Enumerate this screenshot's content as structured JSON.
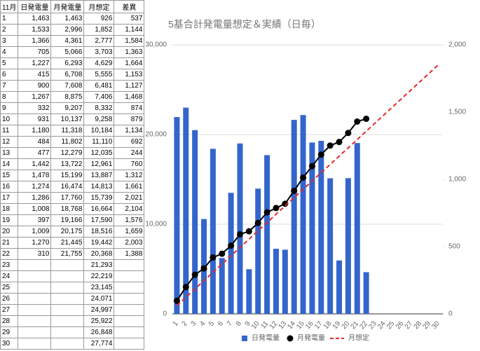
{
  "table": {
    "header": [
      "11月",
      "日発電量",
      "月発電量",
      "月想定",
      "差異"
    ],
    "rows": [
      [
        "1",
        "1,463",
        "1,463",
        "926",
        "537"
      ],
      [
        "2",
        "1,533",
        "2,996",
        "1,852",
        "1,144"
      ],
      [
        "3",
        "1,366",
        "4,361",
        "2,777",
        "1,584"
      ],
      [
        "4",
        "705",
        "5,066",
        "3,703",
        "1,363"
      ],
      [
        "5",
        "1,227",
        "6,293",
        "4,629",
        "1,664"
      ],
      [
        "6",
        "415",
        "6,708",
        "5,555",
        "1,153"
      ],
      [
        "7",
        "900",
        "7,608",
        "6,481",
        "1,127"
      ],
      [
        "8",
        "1,267",
        "8,875",
        "7,406",
        "1,468"
      ],
      [
        "9",
        "332",
        "9,207",
        "8,332",
        "874"
      ],
      [
        "10",
        "931",
        "10,137",
        "9,258",
        "879"
      ],
      [
        "11",
        "1,180",
        "11,318",
        "10,184",
        "1,134"
      ],
      [
        "12",
        "484",
        "11,802",
        "11,110",
        "692"
      ],
      [
        "13",
        "477",
        "12,279",
        "12,035",
        "244"
      ],
      [
        "14",
        "1,442",
        "13,722",
        "12,961",
        "760"
      ],
      [
        "15",
        "1,478",
        "15,199",
        "13,887",
        "1,312"
      ],
      [
        "16",
        "1,274",
        "16,474",
        "14,813",
        "1,661"
      ],
      [
        "17",
        "1,286",
        "17,760",
        "15,739",
        "2,021"
      ],
      [
        "18",
        "1,008",
        "18,768",
        "16,664",
        "2,104"
      ],
      [
        "19",
        "397",
        "19,166",
        "17,590",
        "1,576"
      ],
      [
        "20",
        "1,009",
        "20,175",
        "18,516",
        "1,659"
      ],
      [
        "21",
        "1,270",
        "21,445",
        "19,442",
        "2,003"
      ],
      [
        "22",
        "310",
        "21,755",
        "20,368",
        "1,388"
      ],
      [
        "23",
        null,
        null,
        "21,293",
        null
      ],
      [
        "24",
        null,
        null,
        "22,219",
        null
      ],
      [
        "25",
        null,
        null,
        "23,145",
        null
      ],
      [
        "26",
        null,
        null,
        "24,071",
        null
      ],
      [
        "27",
        null,
        null,
        "24,997",
        null
      ],
      [
        "28",
        null,
        null,
        "25,922",
        null
      ],
      [
        "29",
        null,
        null,
        "26,848",
        null
      ],
      [
        "30",
        null,
        null,
        "27,774",
        null
      ]
    ]
  },
  "chart_data": {
    "type": "bar",
    "title": "5基合計発電量想定＆実績（日毎）",
    "categories": [
      1,
      2,
      3,
      4,
      5,
      6,
      7,
      8,
      9,
      10,
      11,
      12,
      13,
      14,
      15,
      16,
      17,
      18,
      19,
      20,
      21,
      22,
      23,
      24,
      25,
      26,
      27,
      28,
      29,
      30
    ],
    "series": [
      {
        "name": "日発電量",
        "type": "bar",
        "axis": "y2",
        "color": "#3366cc",
        "values": [
          1463,
          1533,
          1366,
          705,
          1227,
          415,
          900,
          1267,
          332,
          931,
          1180,
          484,
          477,
          1442,
          1478,
          1274,
          1286,
          1008,
          397,
          1009,
          1270,
          310,
          null,
          null,
          null,
          null,
          null,
          null,
          null,
          null
        ]
      },
      {
        "name": "月発電量",
        "type": "line",
        "color": "#000000",
        "markers": true,
        "values": [
          1463,
          2996,
          4361,
          5066,
          6293,
          6708,
          7608,
          8875,
          9207,
          10137,
          11318,
          11802,
          12279,
          13722,
          15199,
          16474,
          17760,
          18768,
          19166,
          20175,
          21445,
          21755,
          null,
          null,
          null,
          null,
          null,
          null,
          null,
          null
        ]
      },
      {
        "name": "月想定",
        "type": "line",
        "color": "#e8262a",
        "dashed": true,
        "values": [
          926,
          1852,
          2777,
          3703,
          4629,
          5555,
          6481,
          7406,
          8332,
          9258,
          10184,
          11110,
          12035,
          12961,
          13887,
          14813,
          15739,
          16664,
          17590,
          18516,
          19442,
          20368,
          21293,
          22219,
          23145,
          24071,
          24997,
          25922,
          26848,
          27774
        ]
      }
    ],
    "ylim": [
      0,
      30000
    ],
    "yticks": [
      0,
      {
        "value": 10000,
        "label": "10,000"
      },
      {
        "value": 20000,
        "label": "20,000"
      },
      {
        "value": 30000,
        "label": "30,000"
      }
    ],
    "y2lim": [
      0,
      2000
    ],
    "y2ticks": [
      0,
      500,
      {
        "value": 1000,
        "label": "1,000"
      },
      {
        "value": 1500,
        "label": "1,500"
      },
      {
        "value": 2000,
        "label": "2,000"
      }
    ],
    "grid": true,
    "legend": "bottom"
  }
}
